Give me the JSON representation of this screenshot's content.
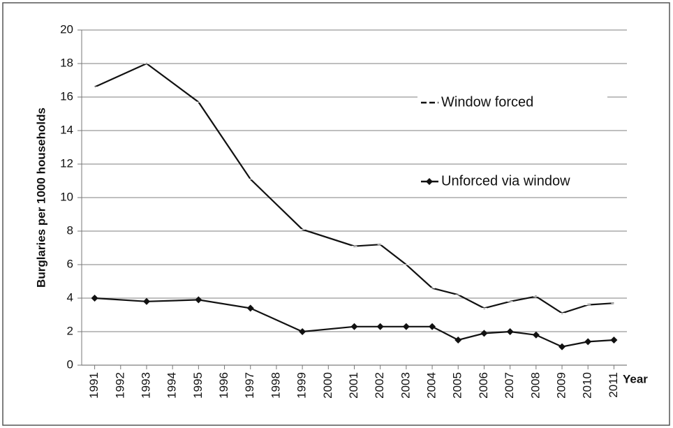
{
  "chart_data": {
    "type": "line",
    "y_label": "Burglaries per 1000 households",
    "x_label": "Year",
    "x": [
      1991,
      1993,
      1995,
      1997,
      1999,
      2001,
      2002,
      2003,
      2004,
      2005,
      2006,
      2007,
      2008,
      2009,
      2010,
      2011
    ],
    "series": [
      {
        "name": "Window forced",
        "color": "#111111",
        "marker": "dash",
        "values": [
          16.6,
          18.0,
          15.7,
          11.1,
          8.1,
          7.1,
          7.2,
          6.0,
          4.6,
          4.2,
          3.4,
          3.8,
          4.1,
          3.1,
          3.6,
          3.7
        ]
      },
      {
        "name": "Unforced via window",
        "color": "#111111",
        "marker": "diamond",
        "values": [
          4.0,
          3.8,
          3.9,
          3.4,
          2.0,
          2.3,
          2.3,
          2.3,
          2.3,
          1.5,
          1.9,
          2.0,
          1.8,
          1.1,
          1.4,
          1.5
        ]
      }
    ],
    "xlim": [
      1990.5,
      2011.5
    ],
    "xticks": [
      1991,
      1992,
      1993,
      1994,
      1995,
      1996,
      1997,
      1998,
      1999,
      2000,
      2001,
      2002,
      2003,
      2004,
      2005,
      2006,
      2007,
      2008,
      2009,
      2010,
      2011
    ],
    "ylim": [
      0,
      20
    ],
    "yticks": [
      0,
      2,
      4,
      6,
      8,
      10,
      12,
      14,
      16,
      18,
      20
    ],
    "grid": true
  }
}
